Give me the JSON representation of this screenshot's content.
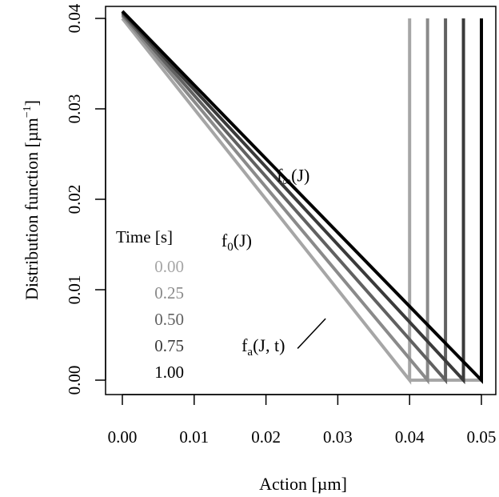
{
  "chart_data": {
    "type": "line",
    "xlabel": "Action [µm]",
    "ylabel": "Distribution function [µm",
    "ylabel_superscript": "−1",
    "ylabel_suffix": "]",
    "xlim": [
      0.0,
      0.05
    ],
    "ylim": [
      0.0,
      0.04
    ],
    "xticks": [
      "0.00",
      "0.01",
      "0.02",
      "0.03",
      "0.04",
      "0.05"
    ],
    "yticks": [
      "0.00",
      "0.01",
      "0.02",
      "0.03",
      "0.04"
    ],
    "grid": false,
    "legend": {
      "title": "Time [s]",
      "placement": "left",
      "entries": [
        "0.00",
        "0.25",
        "0.50",
        "0.75",
        "1.00"
      ]
    },
    "series": [
      {
        "name": "0.00",
        "color": "#a6a6a6",
        "x": [
          0.0,
          0.04,
          0.04,
          0.04
        ],
        "y": [
          0.04,
          0.0,
          0.0,
          0.04
        ]
      },
      {
        "name": "0.25",
        "color": "#8a8a8a",
        "x": [
          0.0,
          0.0425,
          0.0425,
          0.0425
        ],
        "y": [
          0.0403,
          0.0,
          0.0,
          0.04
        ]
      },
      {
        "name": "0.50",
        "color": "#616161",
        "x": [
          0.0,
          0.045,
          0.045,
          0.045
        ],
        "y": [
          0.0405,
          0.0,
          0.0,
          0.04
        ]
      },
      {
        "name": "0.75",
        "color": "#3a3a3a",
        "x": [
          0.0,
          0.0475,
          0.0475,
          0.0475
        ],
        "y": [
          0.0407,
          0.0,
          0.0,
          0.04
        ]
      },
      {
        "name": "1.00",
        "color": "#000000",
        "x": [
          0.0,
          0.05,
          0.05,
          0.05
        ],
        "y": [
          0.0408,
          0.0,
          0.0,
          0.04
        ]
      }
    ],
    "baseline": {
      "color": "#a6a6a6",
      "x": [
        0.04,
        0.05
      ],
      "y": [
        0.0,
        0.0
      ]
    },
    "annotations": [
      {
        "id": "finf",
        "main": "f",
        "sub": "∞",
        "suffix": "(J)",
        "x": 0.0215,
        "y": 0.022
      },
      {
        "id": "f0",
        "main": "f",
        "sub": "0",
        "suffix": "(J)",
        "x": 0.0138,
        "y": 0.0148
      },
      {
        "id": "fa",
        "main": "f",
        "sub": "a",
        "suffix": "(J, t)",
        "x": 0.0166,
        "y": 0.0032
      }
    ],
    "pointer": {
      "x": [
        0.0244,
        0.0283
      ],
      "y": [
        0.0035,
        0.0068
      ]
    }
  }
}
